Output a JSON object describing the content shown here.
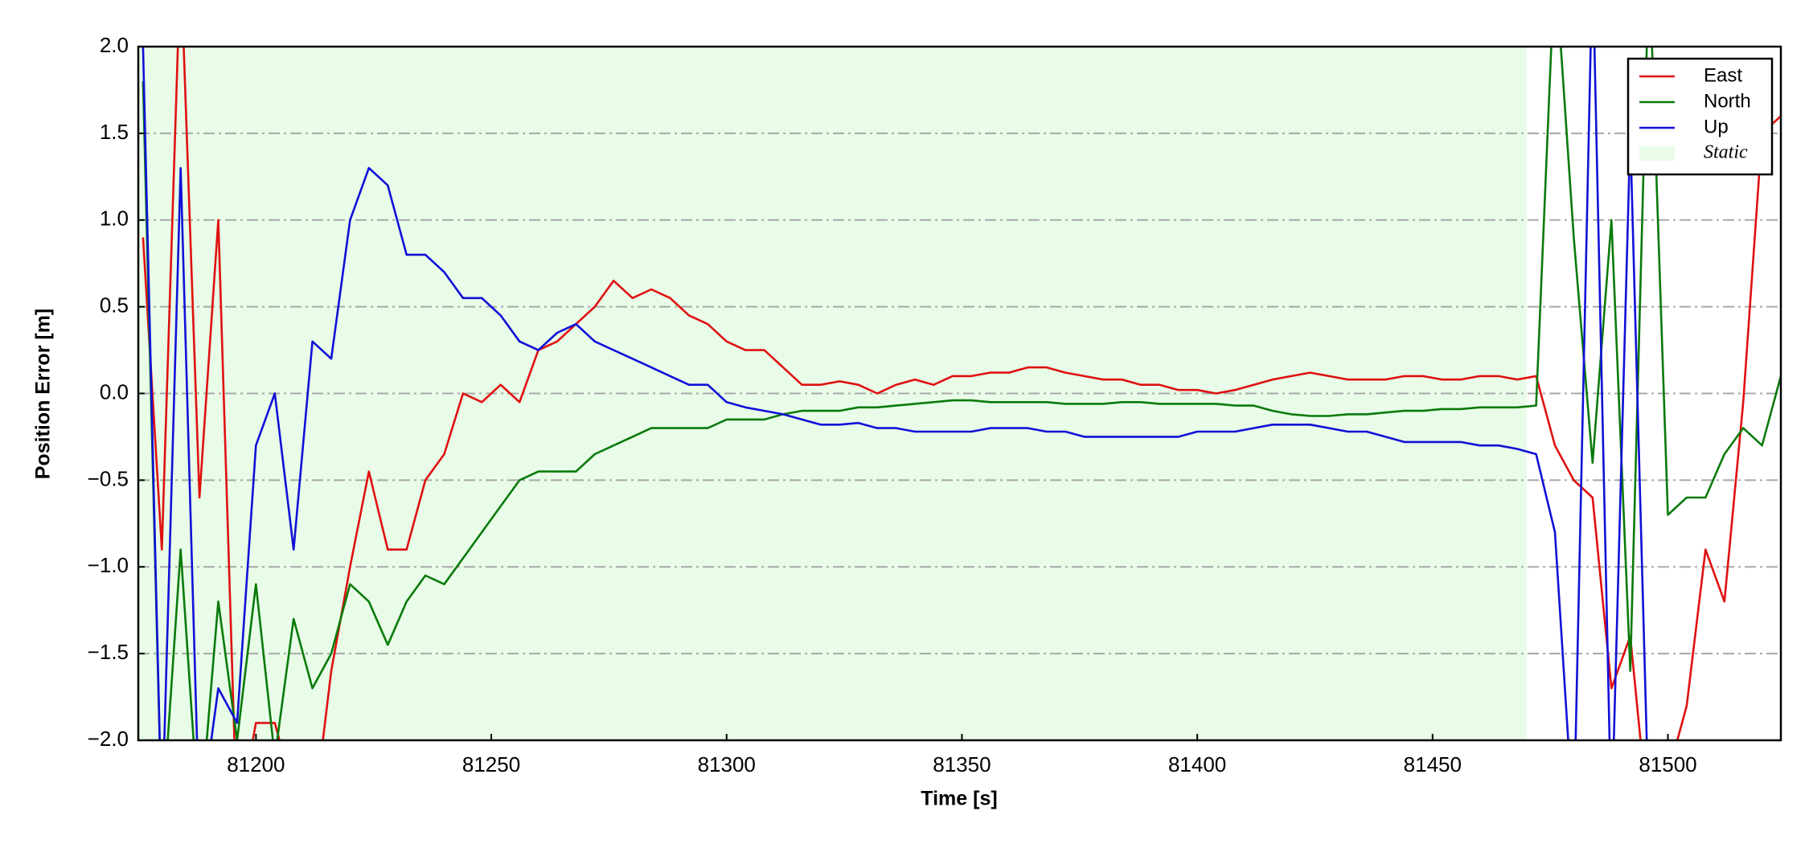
{
  "chart_data": {
    "type": "line",
    "xlabel": "Time [s]",
    "ylabel": "Position Error [m]",
    "xlim": [
      81175,
      81524
    ],
    "ylim": [
      -2,
      2
    ],
    "xticks": [
      81200,
      81250,
      81300,
      81350,
      81400,
      81450,
      81500
    ],
    "yticks": [
      {
        "value": -2,
        "label": "−2.0"
      },
      {
        "value": -1.5,
        "label": "−1.5"
      },
      {
        "value": -1,
        "label": "−1.0"
      },
      {
        "value": -0.5,
        "label": "−0.5"
      },
      {
        "value": 0,
        "label": "0.0"
      },
      {
        "value": 0.5,
        "label": "0.5"
      },
      {
        "value": 1,
        "label": "1.0"
      },
      {
        "value": 1.5,
        "label": "1.5"
      },
      {
        "value": 2,
        "label": "2.0"
      }
    ],
    "grid": true,
    "legend": "upper right",
    "shaded_regions": [
      {
        "name": "Static",
        "start": 81175,
        "end": 81470,
        "color": "#e8fce8"
      }
    ],
    "x": [
      81176,
      81180,
      81184,
      81188,
      81192,
      81196,
      81200,
      81204,
      81208,
      81212,
      81216,
      81220,
      81224,
      81228,
      81232,
      81236,
      81240,
      81244,
      81248,
      81252,
      81256,
      81260,
      81264,
      81268,
      81272,
      81276,
      81280,
      81284,
      81288,
      81292,
      81296,
      81300,
      81304,
      81308,
      81312,
      81316,
      81320,
      81324,
      81328,
      81332,
      81336,
      81340,
      81344,
      81348,
      81352,
      81356,
      81360,
      81364,
      81368,
      81372,
      81376,
      81380,
      81384,
      81388,
      81392,
      81396,
      81400,
      81404,
      81408,
      81412,
      81416,
      81420,
      81424,
      81428,
      81432,
      81436,
      81440,
      81444,
      81448,
      81452,
      81456,
      81460,
      81464,
      81468,
      81472,
      81476,
      81480,
      81484,
      81488,
      81492,
      81496,
      81500,
      81504,
      81508,
      81512,
      81516,
      81520,
      81524
    ],
    "series": [
      {
        "name": "East",
        "color": "#e01010",
        "values": [
          0.9,
          -0.9,
          2.5,
          -0.6,
          1.0,
          -2.5,
          -1.9,
          -1.9,
          -2.3,
          -2.5,
          -1.6,
          -1.0,
          -0.45,
          -0.9,
          -0.9,
          -0.5,
          -0.35,
          0.0,
          -0.05,
          0.05,
          -0.05,
          0.25,
          0.3,
          0.4,
          0.5,
          0.65,
          0.55,
          0.6,
          0.55,
          0.45,
          0.4,
          0.3,
          0.25,
          0.25,
          0.15,
          0.05,
          0.05,
          0.07,
          0.05,
          0.0,
          0.05,
          0.08,
          0.05,
          0.1,
          0.1,
          0.12,
          0.12,
          0.15,
          0.15,
          0.12,
          0.1,
          0.08,
          0.08,
          0.05,
          0.05,
          0.02,
          0.02,
          0.0,
          0.02,
          0.05,
          0.08,
          0.1,
          0.12,
          0.1,
          0.08,
          0.08,
          0.08,
          0.1,
          0.1,
          0.08,
          0.08,
          0.1,
          0.1,
          0.08,
          0.1,
          -0.3,
          -0.5,
          -0.6,
          -1.7,
          -1.4,
          -2.5,
          -2.2,
          -1.8,
          -0.9,
          -1.2,
          -0.05,
          1.5,
          1.6
        ]
      },
      {
        "name": "North",
        "color": "#0a7a0a",
        "values": [
          1.8,
          -2.5,
          -0.9,
          -2.5,
          -1.2,
          -2.0,
          -1.1,
          -2.1,
          -1.3,
          -1.7,
          -1.5,
          -1.1,
          -1.2,
          -1.45,
          -1.2,
          -1.05,
          -1.1,
          -0.95,
          -0.8,
          -0.65,
          -0.5,
          -0.45,
          -0.45,
          -0.45,
          -0.35,
          -0.3,
          -0.25,
          -0.2,
          -0.2,
          -0.2,
          -0.2,
          -0.15,
          -0.15,
          -0.15,
          -0.12,
          -0.1,
          -0.1,
          -0.1,
          -0.08,
          -0.08,
          -0.07,
          -0.06,
          -0.05,
          -0.04,
          -0.04,
          -0.05,
          -0.05,
          -0.05,
          -0.05,
          -0.06,
          -0.06,
          -0.06,
          -0.05,
          -0.05,
          -0.06,
          -0.06,
          -0.06,
          -0.06,
          -0.07,
          -0.07,
          -0.1,
          -0.12,
          -0.13,
          -0.13,
          -0.12,
          -0.12,
          -0.11,
          -0.1,
          -0.1,
          -0.09,
          -0.09,
          -0.08,
          -0.08,
          -0.08,
          -0.07,
          2.5,
          0.9,
          -0.4,
          1.0,
          -1.6,
          2.5,
          -0.7,
          -0.6,
          -0.6,
          -0.35,
          -0.2,
          -0.3,
          0.1
        ]
      },
      {
        "name": "Up",
        "color": "#1010d8",
        "values": [
          2.0,
          -2.5,
          1.3,
          -2.5,
          -1.7,
          -1.9,
          -0.3,
          0.0,
          -0.9,
          0.3,
          0.2,
          1.0,
          1.3,
          1.2,
          0.8,
          0.8,
          0.7,
          0.55,
          0.55,
          0.45,
          0.3,
          0.25,
          0.35,
          0.4,
          0.3,
          0.25,
          0.2,
          0.15,
          0.1,
          0.05,
          0.05,
          -0.05,
          -0.08,
          -0.1,
          -0.12,
          -0.15,
          -0.18,
          -0.18,
          -0.17,
          -0.2,
          -0.2,
          -0.22,
          -0.22,
          -0.22,
          -0.22,
          -0.2,
          -0.2,
          -0.2,
          -0.22,
          -0.22,
          -0.25,
          -0.25,
          -0.25,
          -0.25,
          -0.25,
          -0.25,
          -0.22,
          -0.22,
          -0.22,
          -0.2,
          -0.18,
          -0.18,
          -0.18,
          -0.2,
          -0.22,
          -0.22,
          -0.25,
          -0.28,
          -0.28,
          -0.28,
          -0.28,
          -0.3,
          -0.3,
          -0.32,
          -0.35,
          -0.8,
          -2.5,
          2.5,
          -2.5,
          1.5,
          -2.5,
          null,
          null,
          null,
          null,
          null,
          null,
          null
        ]
      }
    ]
  }
}
